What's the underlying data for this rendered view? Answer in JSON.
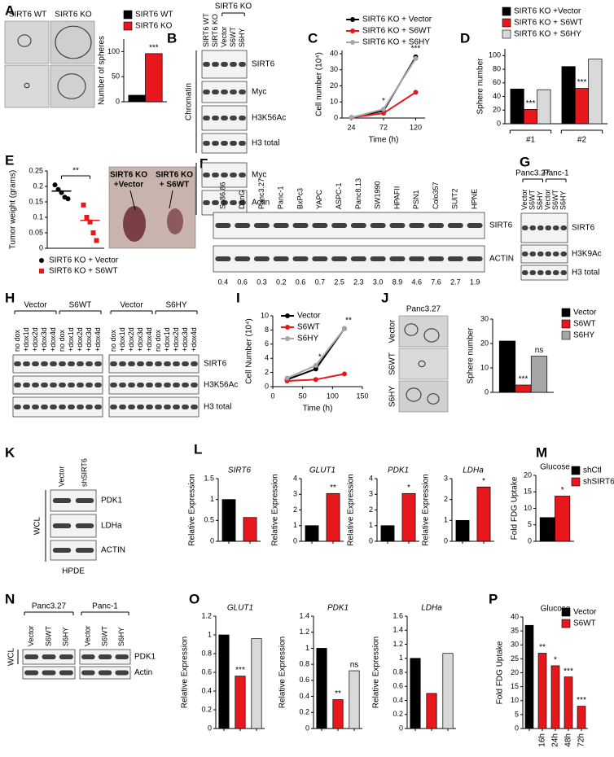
{
  "panels": {
    "A": {
      "label": "A",
      "image_labels": [
        "SIRT6 WT",
        "SIRT6 KO"
      ],
      "chart": {
        "type": "bar",
        "ylabel": "Number of spheres",
        "ylim": [
          0,
          125
        ],
        "yticks": [
          0,
          50,
          100
        ],
        "series": [
          {
            "name": "SIRT6 WT",
            "color": "#000000",
            "values": [
              13
            ]
          },
          {
            "name": "SIRT6 KO",
            "color": "#e8171b",
            "values": [
              96
            ],
            "annotations": [
              "***"
            ]
          }
        ]
      }
    },
    "B": {
      "label": "B",
      "header": "SIRT6 KO",
      "lanes": [
        "SIRT6 WT",
        "SIRT6 KO",
        "Vector",
        "S6WT",
        "S6HY"
      ],
      "sections": [
        {
          "label": "Chromatin",
          "rows": [
            "SIRT6",
            "Myc",
            "H3K56Ac",
            "H3 total"
          ]
        },
        {
          "label": "WCL",
          "rows": [
            "Myc",
            "Actin"
          ]
        }
      ]
    },
    "C": {
      "label": "C",
      "chart": {
        "type": "line",
        "xlabel": "Time (h)",
        "ylabel": "Cell number (10⁴)",
        "x": [
          24,
          72,
          120
        ],
        "xlim": [
          10,
          134
        ],
        "xticks": [
          24,
          72,
          120
        ],
        "ylim": [
          0,
          42
        ],
        "yticks": [
          0,
          10,
          20,
          30,
          40
        ],
        "series": [
          {
            "name": "SIRT6 KO + Vector",
            "color": "#000000",
            "values": [
              0.3,
              4.5,
              38
            ]
          },
          {
            "name": "SIRT6 KO + S6WT",
            "color": "#e8171b",
            "values": [
              0.3,
              3,
              16
            ]
          },
          {
            "name": "SIRT6 KO + S6HY",
            "color": "#a6a6a6",
            "values": [
              0.3,
              5.5,
              37
            ]
          }
        ],
        "annotations": [
          null,
          "*",
          "***"
        ]
      }
    },
    "D": {
      "label": "D",
      "chart": {
        "type": "bar",
        "ylabel": "Sphere number",
        "ylim": [
          0,
          110
        ],
        "yticks": [
          0,
          20,
          40,
          60,
          80,
          100
        ],
        "categories": [
          "#1",
          "#2"
        ],
        "series": [
          {
            "name": "SIRT6 KO +Vector",
            "color": "#000000",
            "values": [
              51,
              84
            ]
          },
          {
            "name": "SIRT6 KO + S6WT",
            "color": "#e8171b",
            "values": [
              21,
              52
            ],
            "annotations": [
              "***",
              "***"
            ]
          },
          {
            "name": "SIRT6 KO + S6HY",
            "color": "#d9d9d9",
            "values": [
              50,
              95
            ]
          }
        ]
      }
    },
    "E": {
      "label": "E",
      "image_labels": [
        [
          "SIRT6 KO",
          "+Vector"
        ],
        [
          "SIRT6 KO",
          "+ S6WT"
        ]
      ],
      "chart": {
        "type": "dot",
        "ylabel": "Tumor weight (grams)",
        "ylim": [
          0,
          0.25
        ],
        "yticks": [
          0,
          0.05,
          0.1,
          0.15,
          0.2,
          0.25
        ],
        "series": [
          {
            "name": "SIRT6 KO + Vector",
            "color": "#000000",
            "values": [
              0.205,
              0.19,
              0.18,
              0.165,
              0.16
            ],
            "mean": 0.185
          },
          {
            "name": "SIRT6 KO + S6WT",
            "color": "#e8171b",
            "values": [
              0.14,
              0.1,
              0.085,
              0.05,
              0.025
            ],
            "mean": 0.09
          }
        ],
        "annotation": "**"
      }
    },
    "F": {
      "label": "F",
      "lanes": [
        "Su86.86",
        "DanG",
        "Panc3.27",
        "Panc-1",
        "BxPc3",
        "YAPC",
        "ASPC-1",
        "Panc8.13",
        "SW1990",
        "HPAFII",
        "PSN1",
        "Colo357",
        "SUIT2",
        "HPNE"
      ],
      "rows": [
        "SIRT6",
        "ACTIN"
      ],
      "quantification": [
        "0.4",
        "0.6",
        "0.3",
        "0.2",
        "0.6",
        "0.7",
        "2.5",
        "2.3",
        "3.0",
        "8.9",
        "4.6",
        "7.6",
        "2.7",
        "1.9"
      ]
    },
    "G": {
      "label": "G",
      "groups": [
        "Panc3.27",
        "Panc-1"
      ],
      "lanes": [
        "Vector",
        "S6WT",
        "S6HY",
        "Vector",
        "S6WT",
        "S6HY"
      ],
      "rows": [
        "SIRT6",
        "H3K9Ac",
        "H3 total"
      ]
    },
    "H": {
      "label": "H",
      "blots": [
        {
          "groups": [
            "Vector",
            "S6WT"
          ],
          "lanes": [
            "no dox",
            "+dox1d",
            "+dox2d",
            "+dox3d",
            "+dox4d",
            "no dox",
            "+dox1d",
            "+dox2d",
            "+dox3d",
            "+dox4d"
          ]
        },
        {
          "groups": [
            "Vector",
            "S6HY"
          ],
          "lanes": [
            "no dox",
            "+dox1d",
            "+dox2d",
            "+dox3d",
            "+dox4d",
            "no dox",
            "+dox1d",
            "+dox2d",
            "+dox3d",
            "+dox4d"
          ]
        }
      ],
      "rows": [
        "SIRT6",
        "H3K56Ac",
        "H3 total"
      ]
    },
    "I": {
      "label": "I",
      "chart": {
        "type": "line",
        "xlabel": "Time (h)",
        "ylabel": "Cell Number (10⁴)",
        "x": [
          24,
          72,
          120
        ],
        "xlim": [
          0,
          150
        ],
        "xticks": [
          0,
          50,
          100,
          150
        ],
        "ylim": [
          0,
          10
        ],
        "yticks": [
          0,
          2,
          4,
          6,
          8,
          10
        ],
        "series": [
          {
            "name": "Vector",
            "color": "#000000",
            "values": [
              1,
              2.5,
              8.2
            ]
          },
          {
            "name": "S6WT",
            "color": "#e8171b",
            "values": [
              0.8,
              1,
              1.8
            ]
          },
          {
            "name": "S6HY",
            "color": "#a6a6a6",
            "values": [
              1.2,
              3,
              8.2
            ]
          }
        ],
        "annotations": [
          null,
          "*",
          "**"
        ]
      }
    },
    "J": {
      "label": "J",
      "image_title": "Panc3.27",
      "image_labels": [
        "Vector",
        "S6WT",
        "S6HY"
      ],
      "chart": {
        "type": "bar",
        "ylabel": "Sphere number",
        "ylim": [
          0,
          30
        ],
        "yticks": [
          0,
          10,
          20,
          30
        ],
        "series": [
          {
            "name": "Vector",
            "color": "#000000",
            "values": [
              21
            ]
          },
          {
            "name": "S6WT",
            "color": "#e8171b",
            "values": [
              3
            ],
            "annotations": [
              "***"
            ]
          },
          {
            "name": "S6HY",
            "color": "#a6a6a6",
            "values": [
              14.8
            ],
            "annotations": [
              "ns"
            ]
          }
        ]
      }
    },
    "K": {
      "label": "K",
      "lanes": [
        "Vector",
        "shSIRT6"
      ],
      "section": "WCL",
      "rows": [
        "PDK1",
        "LDHa",
        "ACTIN"
      ],
      "footer": "HPDE"
    },
    "L": {
      "label": "L",
      "charts": [
        {
          "type": "bar",
          "title": "SIRT6",
          "ylabel": "Relative Expression",
          "ylim": [
            0,
            1.5
          ],
          "yticks": [
            0,
            0.5,
            1,
            1.5
          ],
          "values": [
            1,
            0.57
          ],
          "colors": [
            "#000000",
            "#e8171b"
          ]
        },
        {
          "type": "bar",
          "title": "GLUT1",
          "ylabel": "Relative Expression",
          "ylim": [
            0,
            4
          ],
          "yticks": [
            0,
            1,
            2,
            3,
            4
          ],
          "values": [
            1,
            3.05
          ],
          "colors": [
            "#000000",
            "#e8171b"
          ],
          "annotations": [
            null,
            "**"
          ]
        },
        {
          "type": "bar",
          "title": "PDK1",
          "ylabel": "Relative Expression",
          "ylim": [
            0,
            4
          ],
          "yticks": [
            0,
            1,
            2,
            3,
            4
          ],
          "values": [
            1,
            3.05
          ],
          "colors": [
            "#000000",
            "#e8171b"
          ],
          "annotations": [
            null,
            "*"
          ]
        },
        {
          "type": "bar",
          "title": "LDHa",
          "ylabel": "Relative Expression",
          "ylim": [
            0,
            3
          ],
          "yticks": [
            0,
            1,
            2,
            3
          ],
          "values": [
            1,
            2.6
          ],
          "colors": [
            "#000000",
            "#e8171b"
          ],
          "annotations": [
            null,
            "*"
          ]
        }
      ]
    },
    "M": {
      "label": "M",
      "chart": {
        "type": "bar",
        "title": "Glucose",
        "ylabel": "Fold FDG Uptake",
        "ylim": [
          0,
          20
        ],
        "yticks": [
          0,
          5,
          10,
          15,
          20
        ],
        "series": [
          {
            "name": "shCtl",
            "color": "#000000",
            "values": [
              7.2
            ]
          },
          {
            "name": "shSIRT6",
            "color": "#e8171b",
            "values": [
              13.7
            ],
            "annotations": [
              "*"
            ]
          }
        ]
      }
    },
    "N": {
      "label": "N",
      "groups": [
        "Panc3.27",
        "Panc-1"
      ],
      "lanes": [
        "Vector",
        "S6WT",
        "S6HY",
        "Vector",
        "S6WT",
        "S6HY"
      ],
      "section": "WCL",
      "rows": [
        "PDK1",
        "Actin"
      ]
    },
    "O": {
      "label": "O",
      "charts": [
        {
          "type": "bar",
          "title": "GLUT1",
          "ylabel": "Relative Expression",
          "ylim": [
            0,
            1.2
          ],
          "yticks": [
            0,
            0.2,
            0.4,
            0.6,
            0.8,
            1,
            1.2
          ],
          "values": [
            1,
            0.56,
            0.96
          ],
          "colors": [
            "#000000",
            "#e8171b",
            "#d9d9d9"
          ],
          "annotations": [
            null,
            "***",
            null
          ]
        },
        {
          "type": "bar",
          "title": "PDK1",
          "ylabel": "Relative Expression",
          "ylim": [
            0,
            1.4
          ],
          "yticks": [
            0,
            0.2,
            0.4,
            0.6,
            0.8,
            1,
            1.2,
            1.4
          ],
          "values": [
            1,
            0.36,
            0.72
          ],
          "colors": [
            "#000000",
            "#e8171b",
            "#d9d9d9"
          ],
          "annotations": [
            null,
            "**",
            "ns"
          ]
        },
        {
          "type": "bar",
          "title": "LDHa",
          "ylabel": "Relative Expression",
          "ylim": [
            0,
            1.6
          ],
          "yticks": [
            0,
            0.2,
            0.4,
            0.6,
            0.8,
            1,
            1.2,
            1.4,
            1.6
          ],
          "values": [
            1,
            0.5,
            1.07
          ],
          "colors": [
            "#000000",
            "#e8171b",
            "#d9d9d9"
          ]
        }
      ]
    },
    "P": {
      "label": "P",
      "chart": {
        "type": "bar",
        "title": "Glucose",
        "ylabel": "Fold FDG Uptake",
        "ylim": [
          0,
          40
        ],
        "yticks": [
          0,
          5,
          10,
          15,
          20,
          25,
          30,
          35,
          40
        ],
        "categories": [
          null,
          "16h",
          "24h",
          "48h",
          "72h"
        ],
        "values": [
          37,
          27,
          22.5,
          18.5,
          8
        ],
        "colors": [
          "#000000",
          "#e8171b",
          "#e8171b",
          "#e8171b",
          "#e8171b"
        ],
        "annotations": [
          null,
          "**",
          "*",
          "***",
          "***"
        ],
        "legend": [
          {
            "name": "Vector",
            "color": "#000000"
          },
          {
            "name": "S6WT",
            "color": "#e8171b"
          }
        ]
      }
    }
  }
}
